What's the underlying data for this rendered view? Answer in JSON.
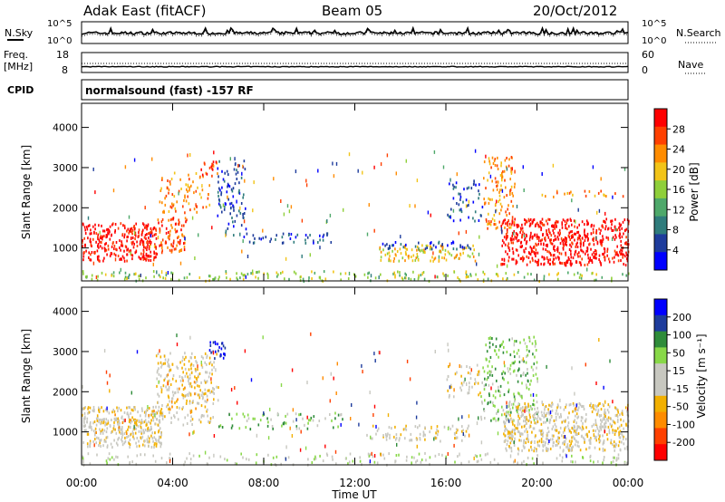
{
  "header": {
    "station": "Adak East (fitACF)",
    "beam": "Beam 05",
    "date": "20/Oct/2012"
  },
  "noise_panel": {
    "left_label": "N.Sky",
    "right_label": "N.Search",
    "y_ticks_left": [
      "10^5",
      "10^0"
    ],
    "y_ticks_right": [
      "10^5",
      "10^0"
    ]
  },
  "freq_panel": {
    "left_label_line1": "Freq.",
    "left_label_line2": "[MHz]",
    "right_label": "Nave",
    "y_ticks_left": [
      "18",
      "8"
    ],
    "y_ticks_right": [
      "60",
      "0"
    ],
    "freq_mhz": 10.2,
    "nave": 30
  },
  "cpid": {
    "label": "CPID",
    "text": "normalsound (fast) -157 RF"
  },
  "chart_data": [
    {
      "type": "heatmap",
      "title": "",
      "ylabel": "Slant Range [km]",
      "ylim": [
        180,
        4600
      ],
      "y_ticks": [
        "4000",
        "3000",
        "2000",
        "1000"
      ],
      "colorbar_label": "Power [dB]",
      "colorbar_ticks": [
        "28",
        "24",
        "20",
        "16",
        "12",
        "8",
        "4"
      ],
      "colors": [
        "#0000ff",
        "#1e3c9c",
        "#2f7c7c",
        "#4ea86a",
        "#8fcf3a",
        "#f2c418",
        "#ff8c00",
        "#ff4000",
        "#ff0000"
      ],
      "regions": [
        {
          "t0": 0.0,
          "t1": 3.3,
          "r0": 700,
          "r1": 1650,
          "level": 8,
          "density": 0.95
        },
        {
          "t0": 3.3,
          "t1": 4.6,
          "r0": 900,
          "r1": 1800,
          "level": 7,
          "density": 0.7
        },
        {
          "t0": 3.4,
          "t1": 5.6,
          "r0": 1900,
          "r1": 2900,
          "level": 6,
          "density": 0.35
        },
        {
          "t0": 5.2,
          "t1": 6.0,
          "r0": 2800,
          "r1": 3200,
          "level": 7,
          "density": 0.6
        },
        {
          "t0": 5.9,
          "t1": 7.2,
          "r0": 1300,
          "r1": 3200,
          "level": 1,
          "density": 0.35
        },
        {
          "t0": 7.2,
          "t1": 11.0,
          "r0": 1150,
          "r1": 1400,
          "level": 1,
          "density": 0.45
        },
        {
          "t0": 13.0,
          "t1": 17.3,
          "r0": 700,
          "r1": 1100,
          "level": 5,
          "density": 0.6
        },
        {
          "t0": 13.2,
          "t1": 17.2,
          "r0": 1000,
          "r1": 1200,
          "level": 1,
          "density": 0.5
        },
        {
          "t0": 16.0,
          "t1": 17.6,
          "r0": 1700,
          "r1": 2700,
          "level": 1,
          "density": 0.3
        },
        {
          "t0": 17.6,
          "t1": 19.0,
          "r0": 1500,
          "r1": 3300,
          "level": 6,
          "density": 0.45
        },
        {
          "t0": 18.4,
          "t1": 24.0,
          "r0": 600,
          "r1": 1750,
          "level": 8,
          "density": 0.95
        },
        {
          "t0": 20.0,
          "t1": 24.0,
          "r0": 2300,
          "r1": 2450,
          "level": 6,
          "density": 0.35
        },
        {
          "t0": 0.0,
          "t1": 24.0,
          "r0": 200,
          "r1": 450,
          "level": 4,
          "density": 0.35
        }
      ]
    },
    {
      "type": "heatmap",
      "title": "",
      "ylabel": "Slant Range [km]",
      "ylim": [
        180,
        4600
      ],
      "y_ticks": [
        "4000",
        "3000",
        "2000",
        "1000"
      ],
      "colorbar_label": "Velocity [m s⁻¹]",
      "colorbar_ticks": [
        "200",
        "100",
        "50",
        "15",
        "-15",
        "-50",
        "-100",
        "-200"
      ],
      "colors": [
        "#ff0000",
        "#ff4000",
        "#ff8c00",
        "#f2b000",
        "#c8c8c0",
        "#c8c8c0",
        "#88d848",
        "#2f8c3a",
        "#1e3c9c",
        "#0000ff"
      ],
      "regions": [
        {
          "t0": 0.0,
          "t1": 3.5,
          "r0": 650,
          "r1": 1650,
          "level": 4,
          "density": 0.9
        },
        {
          "t0": 0.5,
          "t1": 3.5,
          "r0": 900,
          "r1": 1600,
          "level": 3,
          "density": 0.18
        },
        {
          "t0": 3.2,
          "t1": 6.0,
          "r0": 1200,
          "r1": 3000,
          "level": 4,
          "density": 0.45
        },
        {
          "t0": 3.5,
          "t1": 5.5,
          "r0": 1500,
          "r1": 2800,
          "level": 3,
          "density": 0.2
        },
        {
          "t0": 5.6,
          "t1": 6.3,
          "r0": 2850,
          "r1": 3300,
          "level": 9,
          "density": 0.8
        },
        {
          "t0": 6.0,
          "t1": 11.5,
          "r0": 1100,
          "r1": 1500,
          "level": 6,
          "density": 0.3
        },
        {
          "t0": 12.5,
          "t1": 17.0,
          "r0": 800,
          "r1": 1200,
          "level": 4,
          "density": 0.45
        },
        {
          "t0": 16.0,
          "t1": 17.5,
          "r0": 1900,
          "r1": 2700,
          "level": 4,
          "density": 0.35
        },
        {
          "t0": 17.5,
          "t1": 20.0,
          "r0": 1300,
          "r1": 3400,
          "level": 6,
          "density": 0.4
        },
        {
          "t0": 18.5,
          "t1": 24.0,
          "r0": 550,
          "r1": 1750,
          "level": 4,
          "density": 0.9
        },
        {
          "t0": 0.0,
          "t1": 24.0,
          "r0": 200,
          "r1": 500,
          "level": 5,
          "density": 0.25
        }
      ]
    }
  ],
  "x_axis": {
    "label": "Time UT",
    "ticks": [
      "00:00",
      "04:00",
      "08:00",
      "12:00",
      "16:00",
      "20:00",
      "00:00"
    ],
    "xlim_hours": [
      0,
      24
    ]
  }
}
